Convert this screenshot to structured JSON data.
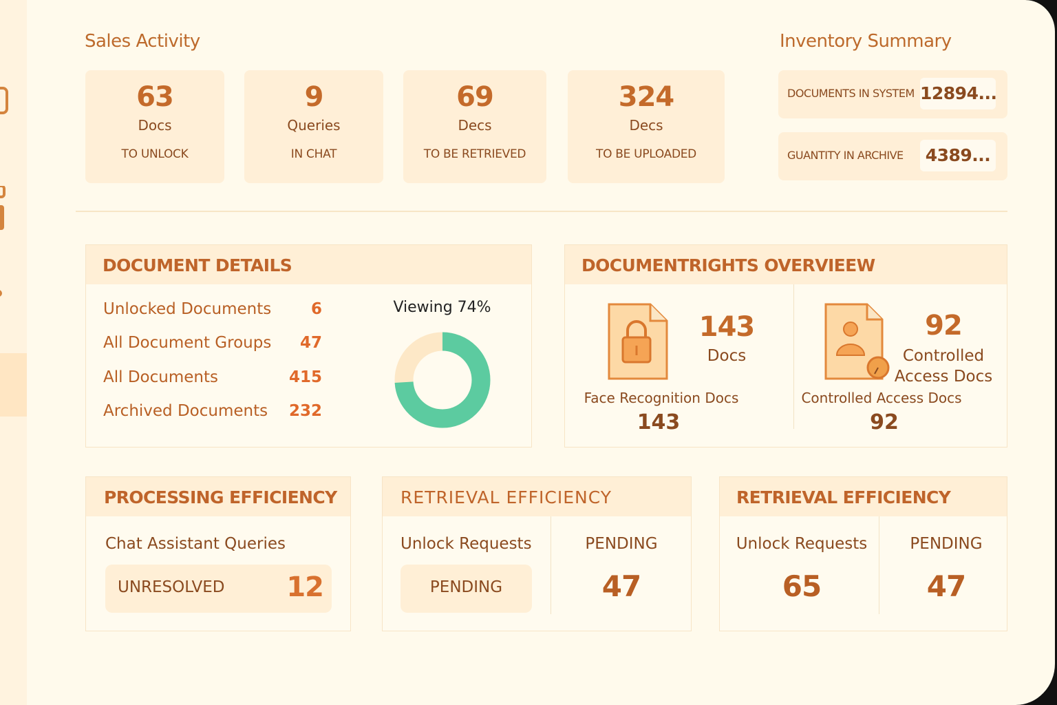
{
  "sales": {
    "title": "Sales Activity",
    "stats": [
      {
        "value": "63",
        "unit": "Docs",
        "sub": "TO UNLOCK"
      },
      {
        "value": "9",
        "unit": "Queries",
        "sub": "IN CHAT"
      },
      {
        "value": "69",
        "unit": "Decs",
        "sub": "TO BE RETRIEVED"
      },
      {
        "value": "324",
        "unit": "Decs",
        "sub": "TO BE UPLOADED"
      }
    ]
  },
  "inventory": {
    "title": "Inventory Summary",
    "items": [
      {
        "label": "DOCUMENTS IN SYSTEM",
        "value": "12894..."
      },
      {
        "label": "GUANTITY IN ARCHIVE",
        "value": "4389..."
      }
    ]
  },
  "details": {
    "title": "DOCUMENT DETAILS",
    "rows": [
      {
        "label": "Unlocked Documents",
        "value": "6"
      },
      {
        "label": "All Document Groups",
        "value": "47"
      },
      {
        "label": "All Documents",
        "value": "415"
      },
      {
        "label": "Archived Documents",
        "value": "232"
      }
    ],
    "donut_label": "Viewing 74%",
    "donut_percent": 74,
    "donut_colors": {
      "fill": "#5ccba0",
      "track": "#fde8c7"
    }
  },
  "rights": {
    "title": "DOCUMENTRIGHTS OVERVIEEW",
    "left": {
      "value": "143",
      "unit": "Docs",
      "caption": "Face Recognition Docs",
      "small": "143"
    },
    "right": {
      "value": "92",
      "unit_line1": "Controlled",
      "unit_line2": "Access Docs",
      "caption": "Controlled Access Docs",
      "small": "92"
    }
  },
  "processing": {
    "title": "PROCESSING EFFICIENCY",
    "label": "Chat Assistant Queries",
    "pill_label": "UNRESOLVED",
    "pill_value": "12"
  },
  "retrieval1": {
    "title": "RETRIEVAL EFFICIENCY",
    "left_label": "Unlock Requests",
    "pill_label": "PENDING",
    "right_label": "PENDING",
    "right_value": "47"
  },
  "retrieval2": {
    "title": "RETRIEVAL EFFICIENCY",
    "left_label": "Unlock Requests",
    "left_value": "65",
    "right_label": "PENDING",
    "right_value": "47"
  }
}
